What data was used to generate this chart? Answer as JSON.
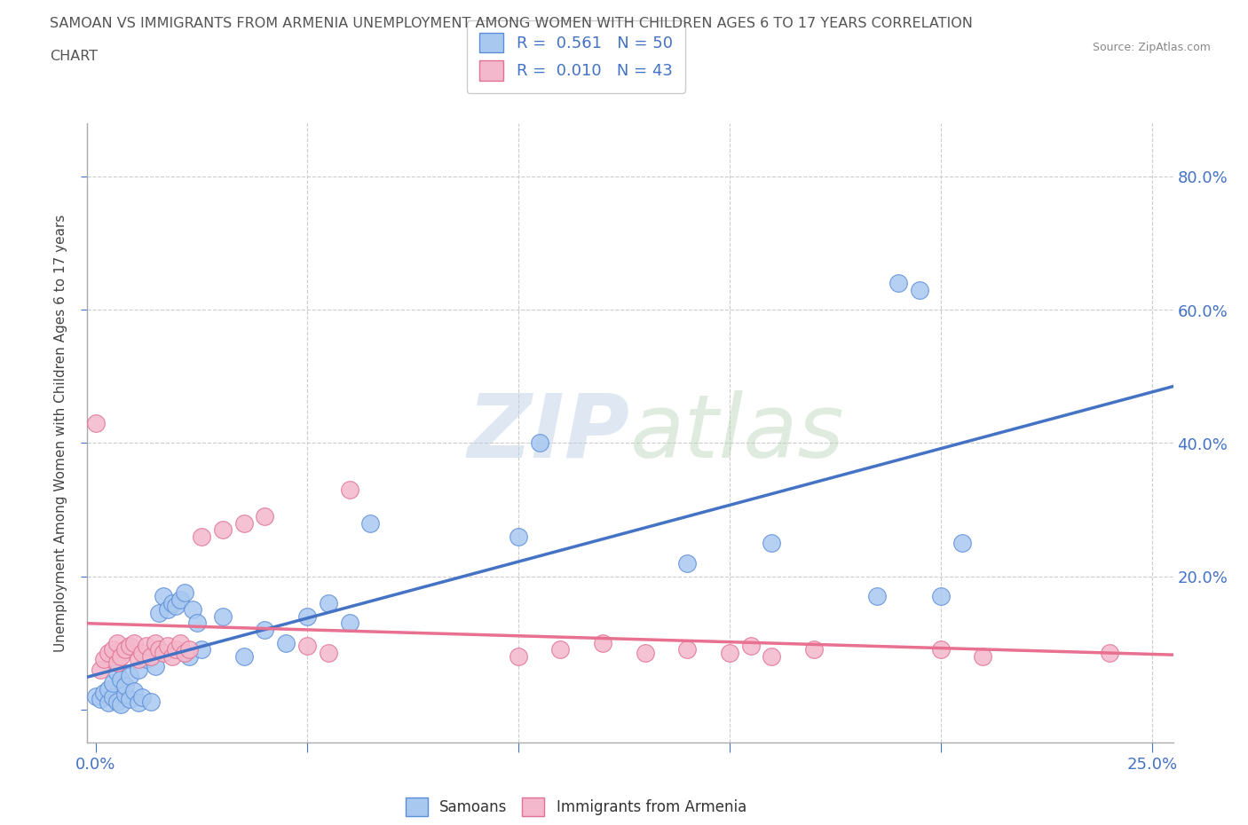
{
  "title_line1": "SAMOAN VS IMMIGRANTS FROM ARMENIA UNEMPLOYMENT AMONG WOMEN WITH CHILDREN AGES 6 TO 17 YEARS CORRELATION",
  "title_line2": "CHART",
  "source": "Source: ZipAtlas.com",
  "ylabel": "Unemployment Among Women with Children Ages 6 to 17 years",
  "xlim": [
    -0.002,
    0.255
  ],
  "ylim": [
    -0.05,
    0.88
  ],
  "x_ticks": [
    0.0,
    0.05,
    0.1,
    0.15,
    0.2,
    0.25
  ],
  "y_ticks": [
    0.0,
    0.2,
    0.4,
    0.6,
    0.8
  ],
  "samoan_color": "#a8c8f0",
  "samoan_edge_color": "#5b8dd9",
  "armenia_color": "#f4b8cc",
  "armenia_edge_color": "#e07090",
  "samoan_line_color": "#4472c4",
  "armenia_line_color": "#e87090",
  "R_samoan": 0.561,
  "N_samoan": 50,
  "R_armenia": 0.01,
  "N_armenia": 43,
  "watermark_zip": "ZIP",
  "watermark_atlas": "atlas",
  "background_color": "#ffffff",
  "grid_color": "#cccccc",
  "title_color": "#555555",
  "axis_color": "#4472c4",
  "ylabel_color": "#444444",
  "samoan_x": [
    0.0,
    0.001,
    0.002,
    0.003,
    0.003,
    0.004,
    0.004,
    0.005,
    0.005,
    0.006,
    0.006,
    0.007,
    0.007,
    0.008,
    0.008,
    0.009,
    0.01,
    0.01,
    0.011,
    0.012,
    0.013,
    0.014,
    0.015,
    0.016,
    0.017,
    0.018,
    0.019,
    0.02,
    0.021,
    0.022,
    0.023,
    0.024,
    0.025,
    0.03,
    0.035,
    0.04,
    0.045,
    0.05,
    0.055,
    0.06,
    0.065,
    0.1,
    0.105,
    0.14,
    0.16,
    0.185,
    0.19,
    0.195,
    0.2,
    0.205
  ],
  "samoan_y": [
    0.02,
    0.015,
    0.025,
    0.01,
    0.03,
    0.018,
    0.04,
    0.012,
    0.055,
    0.008,
    0.045,
    0.022,
    0.035,
    0.015,
    0.05,
    0.028,
    0.01,
    0.06,
    0.018,
    0.075,
    0.012,
    0.065,
    0.145,
    0.17,
    0.15,
    0.16,
    0.155,
    0.165,
    0.175,
    0.08,
    0.15,
    0.13,
    0.09,
    0.14,
    0.08,
    0.12,
    0.1,
    0.14,
    0.16,
    0.13,
    0.28,
    0.26,
    0.4,
    0.22,
    0.25,
    0.17,
    0.64,
    0.63,
    0.17,
    0.25
  ],
  "armenia_x": [
    0.0,
    0.001,
    0.002,
    0.003,
    0.004,
    0.005,
    0.005,
    0.006,
    0.007,
    0.008,
    0.009,
    0.01,
    0.011,
    0.012,
    0.013,
    0.014,
    0.015,
    0.016,
    0.017,
    0.018,
    0.019,
    0.02,
    0.021,
    0.022,
    0.025,
    0.03,
    0.035,
    0.04,
    0.05,
    0.055,
    0.06,
    0.1,
    0.11,
    0.12,
    0.13,
    0.14,
    0.15,
    0.155,
    0.16,
    0.17,
    0.2,
    0.21,
    0.24
  ],
  "armenia_y": [
    0.43,
    0.06,
    0.075,
    0.085,
    0.09,
    0.07,
    0.1,
    0.08,
    0.09,
    0.095,
    0.1,
    0.075,
    0.085,
    0.095,
    0.08,
    0.1,
    0.09,
    0.085,
    0.095,
    0.08,
    0.09,
    0.1,
    0.085,
    0.09,
    0.26,
    0.27,
    0.28,
    0.29,
    0.095,
    0.085,
    0.33,
    0.08,
    0.09,
    0.1,
    0.085,
    0.09,
    0.085,
    0.095,
    0.08,
    0.09,
    0.09,
    0.08,
    0.085
  ]
}
